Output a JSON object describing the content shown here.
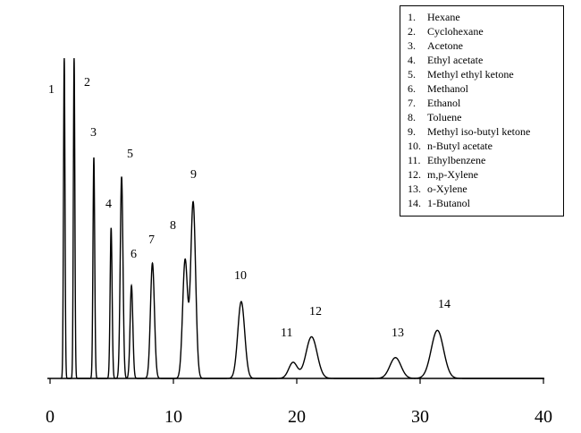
{
  "chart_data": {
    "type": "line",
    "title": "",
    "xlabel": "",
    "ylabel": "",
    "xlim": [
      0,
      40
    ],
    "x_ticks": [
      0,
      10,
      20,
      30,
      40
    ],
    "grid": false,
    "legend_position": "top-right",
    "baseline_end_x": 40,
    "compounds": [
      {
        "id": "1",
        "name": "Hexane",
        "rt": 1.15,
        "height": 1.0,
        "width": 0.06
      },
      {
        "id": "2",
        "name": "Cyclohexane",
        "rt": 1.95,
        "height": 1.0,
        "width": 0.06
      },
      {
        "id": "3",
        "name": "Acetone",
        "rt": 3.55,
        "height": 0.69,
        "width": 0.07
      },
      {
        "id": "4",
        "name": "Ethyl acetate",
        "rt": 4.95,
        "height": 0.47,
        "width": 0.08
      },
      {
        "id": "5",
        "name": "Methyl ethyl ketone",
        "rt": 5.8,
        "height": 0.63,
        "width": 0.11
      },
      {
        "id": "6",
        "name": "Methanol",
        "rt": 6.6,
        "height": 0.29,
        "width": 0.11
      },
      {
        "id": "7",
        "name": "Ethanol",
        "rt": 8.3,
        "height": 0.36,
        "width": 0.16
      },
      {
        "id": "8",
        "name": "Toluene",
        "rt": 10.95,
        "height": 0.37,
        "width": 0.2
      },
      {
        "id": "9",
        "name": "Methyl iso-butyl ketone",
        "rt": 11.6,
        "height": 0.55,
        "width": 0.2
      },
      {
        "id": "10",
        "name": "n-Butyl acetate",
        "rt": 15.5,
        "height": 0.24,
        "width": 0.28
      },
      {
        "id": "11",
        "name": "Ethylbenzene",
        "rt": 19.7,
        "height": 0.05,
        "width": 0.35
      },
      {
        "id": "12",
        "name": "m,p-Xylene",
        "rt": 21.2,
        "height": 0.13,
        "width": 0.45
      },
      {
        "id": "13",
        "name": "o-Xylene",
        "rt": 28.0,
        "height": 0.065,
        "width": 0.45
      },
      {
        "id": "14",
        "name": "1-Butanol",
        "rt": 31.4,
        "height": 0.15,
        "width": 0.5
      }
    ]
  },
  "legend": {
    "items": [
      {
        "num": "1.",
        "name": "Hexane"
      },
      {
        "num": "2.",
        "name": "Cyclohexane"
      },
      {
        "num": "3.",
        "name": "Acetone"
      },
      {
        "num": "4.",
        "name": "Ethyl acetate"
      },
      {
        "num": "5.",
        "name": "Methyl ethyl ketone"
      },
      {
        "num": "6.",
        "name": "Methanol"
      },
      {
        "num": "7.",
        "name": "Ethanol"
      },
      {
        "num": "8.",
        "name": "Toluene"
      },
      {
        "num": "9.",
        "name": "Methyl iso-butyl ketone"
      },
      {
        "num": "10.",
        "name": "n-Butyl acetate"
      },
      {
        "num": "11.",
        "name": "Ethylbenzene"
      },
      {
        "num": "12.",
        "name": "m,p-Xylene"
      },
      {
        "num": "13.",
        "name": "o-Xylene"
      },
      {
        "num": "14.",
        "name": "1-Butanol"
      }
    ]
  },
  "peak_labels": [
    "1",
    "2",
    "3",
    "4",
    "5",
    "6",
    "7",
    "8",
    "9",
    "10",
    "11",
    "12",
    "13",
    "14"
  ],
  "tick_labels": [
    "0",
    "10",
    "20",
    "30",
    "40"
  ]
}
